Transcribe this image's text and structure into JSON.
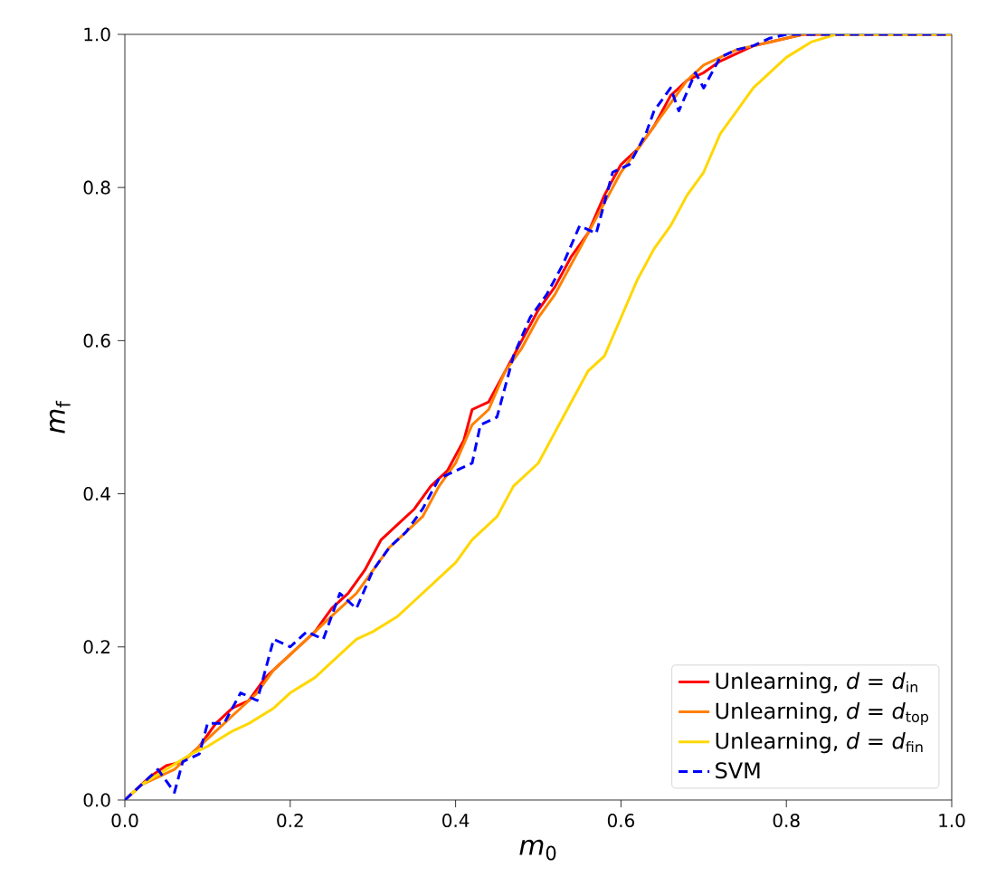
{
  "chart_data": {
    "type": "line",
    "xlabel": "*m*$_{0}$",
    "ylabel": "*m*$_{f}$",
    "xlim": [
      0,
      1
    ],
    "ylim": [
      0,
      1
    ],
    "xticks": [
      {
        "value": 0,
        "label": "0.0"
      },
      {
        "value": 0.2,
        "label": "0.2"
      },
      {
        "value": 0.4,
        "label": "0.4"
      },
      {
        "value": 0.6,
        "label": "0.6"
      },
      {
        "value": 0.8,
        "label": "0.8"
      },
      {
        "value": 1,
        "label": "1.0"
      }
    ],
    "yticks": [
      {
        "value": 0,
        "label": "0.0"
      },
      {
        "value": 0.2,
        "label": "0.2"
      },
      {
        "value": 0.4,
        "label": "0.4"
      },
      {
        "value": 0.6,
        "label": "0.6"
      },
      {
        "value": 0.8,
        "label": "0.8"
      },
      {
        "value": 1,
        "label": "1.0"
      }
    ],
    "legend": "bottom right",
    "grid": false,
    "series": [
      {
        "name": "Unlearning, *d* = *d*$_{in}$",
        "color": "#ff0000",
        "line_style": "solid",
        "x": [
          0,
          0.03,
          0.05,
          0.07,
          0.09,
          0.11,
          0.13,
          0.15,
          0.17,
          0.19,
          0.21,
          0.23,
          0.25,
          0.27,
          0.29,
          0.31,
          0.33,
          0.35,
          0.37,
          0.39,
          0.41,
          0.42,
          0.44,
          0.46,
          0.48,
          0.5,
          0.52,
          0.54,
          0.56,
          0.58,
          0.6,
          0.62,
          0.64,
          0.66,
          0.68,
          0.7,
          0.72,
          0.74,
          0.76,
          0.78,
          0.8,
          0.82,
          1
        ],
        "values": [
          0,
          0.03,
          0.045,
          0.05,
          0.07,
          0.1,
          0.12,
          0.13,
          0.16,
          0.18,
          0.2,
          0.22,
          0.25,
          0.27,
          0.3,
          0.34,
          0.36,
          0.38,
          0.41,
          0.43,
          0.47,
          0.51,
          0.52,
          0.56,
          0.6,
          0.64,
          0.67,
          0.71,
          0.74,
          0.79,
          0.83,
          0.85,
          0.88,
          0.92,
          0.94,
          0.95,
          0.965,
          0.975,
          0.985,
          0.99,
          0.995,
          1,
          1
        ]
      },
      {
        "name": "Unlearning, *d* = *d*$_{top}$",
        "color": "#ff8000",
        "line_style": "solid",
        "x": [
          0,
          0.02,
          0.04,
          0.06,
          0.08,
          0.1,
          0.12,
          0.14,
          0.16,
          0.18,
          0.2,
          0.22,
          0.24,
          0.26,
          0.28,
          0.3,
          0.32,
          0.34,
          0.36,
          0.38,
          0.4,
          0.42,
          0.44,
          0.46,
          0.48,
          0.5,
          0.52,
          0.54,
          0.56,
          0.58,
          0.6,
          0.62,
          0.64,
          0.66,
          0.68,
          0.7,
          0.72,
          0.74,
          0.76,
          0.78,
          0.8,
          0.82,
          0.84,
          1
        ],
        "values": [
          0,
          0.02,
          0.03,
          0.04,
          0.06,
          0.08,
          0.1,
          0.12,
          0.14,
          0.17,
          0.19,
          0.21,
          0.23,
          0.25,
          0.27,
          0.3,
          0.33,
          0.35,
          0.37,
          0.41,
          0.44,
          0.49,
          0.51,
          0.56,
          0.59,
          0.63,
          0.66,
          0.7,
          0.74,
          0.78,
          0.82,
          0.85,
          0.88,
          0.91,
          0.94,
          0.96,
          0.97,
          0.98,
          0.985,
          0.99,
          0.995,
          1,
          1,
          1
        ]
      },
      {
        "name": "Unlearning, *d* = *d*$_{fin}$",
        "color": "#ffd700",
        "line_style": "solid",
        "x": [
          0,
          0.02,
          0.05,
          0.08,
          0.1,
          0.13,
          0.15,
          0.18,
          0.2,
          0.23,
          0.25,
          0.28,
          0.3,
          0.33,
          0.35,
          0.38,
          0.4,
          0.42,
          0.45,
          0.47,
          0.5,
          0.52,
          0.54,
          0.56,
          0.58,
          0.6,
          0.62,
          0.64,
          0.66,
          0.68,
          0.7,
          0.72,
          0.74,
          0.76,
          0.78,
          0.8,
          0.83,
          0.86,
          1
        ],
        "values": [
          0,
          0.02,
          0.04,
          0.06,
          0.07,
          0.09,
          0.1,
          0.12,
          0.14,
          0.16,
          0.18,
          0.21,
          0.22,
          0.24,
          0.26,
          0.29,
          0.31,
          0.34,
          0.37,
          0.41,
          0.44,
          0.48,
          0.52,
          0.56,
          0.58,
          0.63,
          0.68,
          0.72,
          0.75,
          0.79,
          0.82,
          0.87,
          0.9,
          0.93,
          0.95,
          0.97,
          0.99,
          1,
          1
        ]
      },
      {
        "name": "SVM",
        "color": "#0000ff",
        "line_style": "dashed",
        "x": [
          0,
          0.02,
          0.04,
          0.06,
          0.07,
          0.09,
          0.1,
          0.12,
          0.14,
          0.16,
          0.18,
          0.2,
          0.22,
          0.24,
          0.26,
          0.28,
          0.3,
          0.32,
          0.34,
          0.36,
          0.38,
          0.4,
          0.42,
          0.43,
          0.45,
          0.47,
          0.49,
          0.51,
          0.53,
          0.55,
          0.57,
          0.59,
          0.61,
          0.63,
          0.64,
          0.66,
          0.67,
          0.69,
          0.7,
          0.72,
          0.74,
          0.76,
          0.78,
          0.8,
          1
        ],
        "values": [
          0,
          0.02,
          0.04,
          0.01,
          0.05,
          0.06,
          0.1,
          0.1,
          0.14,
          0.13,
          0.21,
          0.2,
          0.22,
          0.21,
          0.27,
          0.25,
          0.3,
          0.33,
          0.35,
          0.38,
          0.42,
          0.43,
          0.44,
          0.49,
          0.5,
          0.58,
          0.63,
          0.66,
          0.7,
          0.75,
          0.74,
          0.82,
          0.83,
          0.87,
          0.9,
          0.93,
          0.9,
          0.95,
          0.93,
          0.97,
          0.98,
          0.985,
          0.995,
          1,
          1
        ]
      }
    ]
  }
}
